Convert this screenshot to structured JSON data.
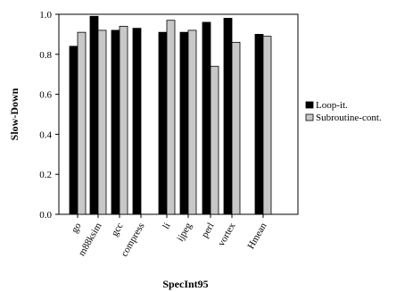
{
  "chart_data": {
    "type": "bar",
    "xlabel": "SpecInt95",
    "ylabel": "Slow-Down",
    "ylim": [
      0,
      1.0
    ],
    "yticks": [
      "0.0",
      "0.2",
      "0.4",
      "0.6",
      "0.8",
      "1.0"
    ],
    "categories": [
      "go",
      "m88ksim",
      "gcc",
      "compress",
      "li",
      "ijpeg",
      "perl",
      "vortex",
      "Hmean"
    ],
    "series": [
      {
        "name": "Loop-it.",
        "color": "#000000",
        "values": [
          0.84,
          0.99,
          0.92,
          0.93,
          0.91,
          0.91,
          0.96,
          0.98,
          0.9
        ]
      },
      {
        "name": "Subroutine-cont.",
        "color": "#c8c8c8",
        "values": [
          0.91,
          0.92,
          0.94,
          null,
          0.97,
          0.92,
          0.74,
          0.86,
          0.89
        ]
      }
    ],
    "grid": false,
    "legend_position": "right"
  }
}
